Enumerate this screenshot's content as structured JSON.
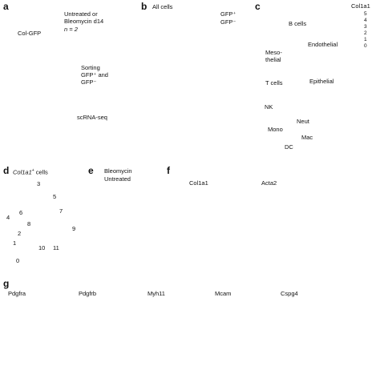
{
  "figure": {
    "panels": {
      "a": {
        "letter": "a",
        "mouse_label": "Col-GFP",
        "condition_line1": "Untreated or",
        "condition_line2": "Bleomycin d14",
        "n_label": "n = 2",
        "sorting_line1": "Sorting",
        "sorting_line2": "GFP⁺ and",
        "sorting_line3": "GFP⁻",
        "method_label": "scRNA-seq"
      },
      "b": {
        "letter": "b",
        "title": "All cells",
        "legend": [
          {
            "label": "GFP⁺",
            "color": "#f07a6a"
          },
          {
            "label": "GFP⁻",
            "color": "#2bbab8"
          }
        ]
      },
      "c": {
        "letter": "c",
        "colorbar_title": "Col1a1",
        "colorbar_ticks": [
          "5",
          "4",
          "3",
          "2",
          "1",
          "0"
        ],
        "cell_labels": {
          "b_cells": "B cells",
          "endothelial": "Endothelial",
          "meso_1": "Meso-",
          "meso_2": "thelial",
          "t_cells": "T cells",
          "epithelial": "Epithelial",
          "nk": "NK",
          "neut": "Neut",
          "mono": "Mono",
          "mac": "Mac",
          "dc": "DC"
        }
      },
      "d": {
        "letter": "d",
        "title_gene": "Col1a1",
        "title_sup": "+",
        "title_rest": " cells",
        "clusters": [
          "0",
          "1",
          "2",
          "3",
          "4",
          "5",
          "6",
          "7",
          "8",
          "9",
          "10",
          "11"
        ]
      },
      "e": {
        "letter": "e",
        "legend": [
          {
            "label": "Bleomycin",
            "color": "#f07a6a"
          },
          {
            "label": "Untreated",
            "color": "#2bbab8"
          }
        ]
      },
      "f": {
        "letter": "f",
        "genes": [
          "Col1a1",
          "Acta2"
        ]
      },
      "g": {
        "letter": "g",
        "genes": [
          "Pdgfra",
          "Pdgfrb",
          "Myh11",
          "Mcam",
          "Cspg4"
        ]
      }
    },
    "colors": {
      "expression_high": "#4b2fc9",
      "expression_low": "#d0d0d0",
      "gfp_pos": "#f07a6a",
      "gfp_neg": "#2bbab8"
    }
  }
}
